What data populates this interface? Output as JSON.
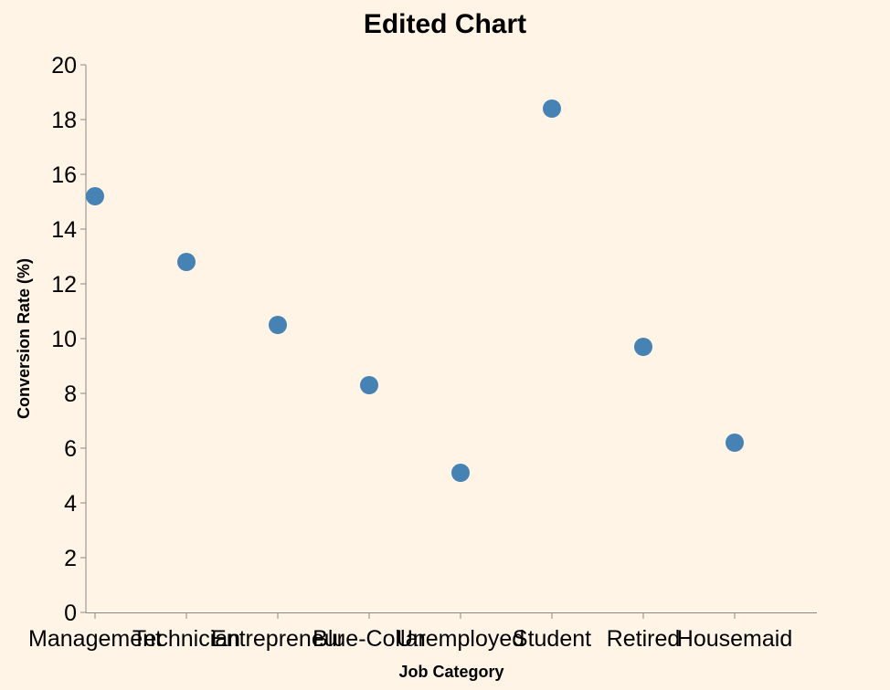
{
  "chart_data": {
    "type": "scatter",
    "title": "Edited Chart",
    "xlabel": "Job Category",
    "ylabel": "Conversion Rate (%)",
    "categories": [
      "Management",
      "Technician",
      "Entrepreneur",
      "Blue-Collar",
      "Unemployed",
      "Student",
      "Retired",
      "Housemaid"
    ],
    "values": [
      15.2,
      12.8,
      10.5,
      8.3,
      5.1,
      18.4,
      9.7,
      6.2
    ],
    "ylim": [
      0,
      20
    ],
    "yticks": [
      0,
      2,
      4,
      6,
      8,
      10,
      12,
      14,
      16,
      18,
      20
    ],
    "grid": false,
    "point_color": "#4682b4"
  }
}
